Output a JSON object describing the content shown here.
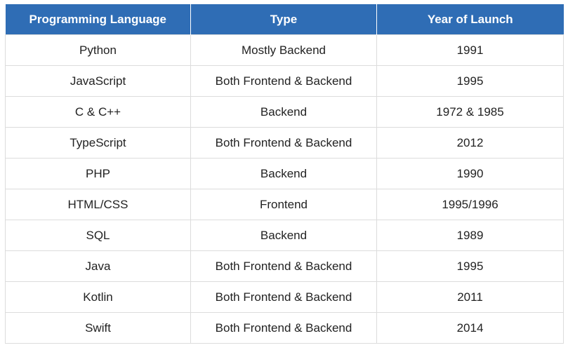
{
  "table": {
    "headers": [
      "Programming Language",
      "Type",
      "Year of Launch"
    ],
    "rows": [
      [
        "Python",
        "Mostly Backend",
        "1991"
      ],
      [
        "JavaScript",
        "Both Frontend & Backend",
        "1995"
      ],
      [
        "C & C++",
        "Backend",
        "1972 & 1985"
      ],
      [
        "TypeScript",
        "Both Frontend & Backend",
        "2012"
      ],
      [
        "PHP",
        "Backend",
        "1990"
      ],
      [
        "HTML/CSS",
        "Frontend",
        "1995/1996"
      ],
      [
        "SQL",
        "Backend",
        "1989"
      ],
      [
        "Java",
        "Both Frontend & Backend",
        "1995"
      ],
      [
        "Kotlin",
        "Both Frontend & Backend",
        "2011"
      ],
      [
        "Swift",
        "Both Frontend & Backend",
        "2014"
      ]
    ]
  },
  "colors": {
    "header_bg": "#2f6db5",
    "header_text": "#ffffff",
    "cell_text": "#222222",
    "border": "#dcdcdc"
  }
}
